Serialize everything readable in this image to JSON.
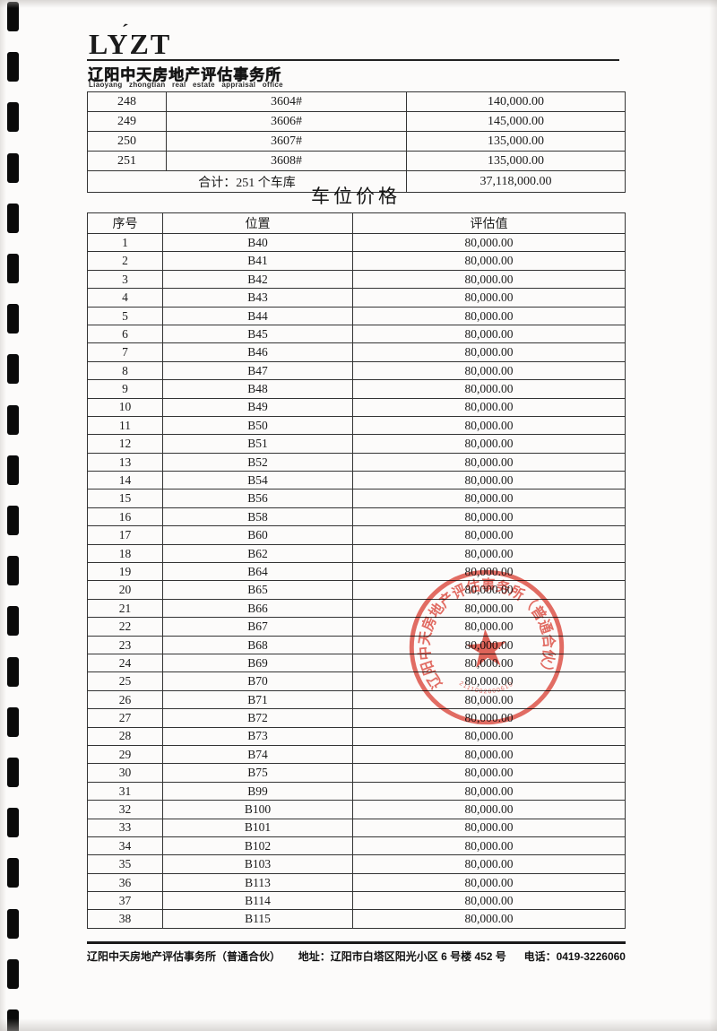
{
  "header": {
    "logo_text": "LYZT",
    "logo_accent": "ˊ",
    "company_cn": "辽阳中天房地产评估事务所",
    "company_en": "Liaoyang zhongtian real estate appraisal office"
  },
  "garage_table": {
    "rows": [
      [
        "248",
        "3604#",
        "140,000.00"
      ],
      [
        "249",
        "3606#",
        "145,000.00"
      ],
      [
        "250",
        "3607#",
        "135,000.00"
      ],
      [
        "251",
        "3608#",
        "135,000.00"
      ]
    ],
    "total_label": "合计：251 个车库",
    "total_value": "37,118,000.00"
  },
  "section_title": "车位价格",
  "parking_table": {
    "headers": [
      "序号",
      "位置",
      "评估值"
    ],
    "rows": [
      [
        "1",
        "B40",
        "80,000.00"
      ],
      [
        "2",
        "B41",
        "80,000.00"
      ],
      [
        "3",
        "B42",
        "80,000.00"
      ],
      [
        "4",
        "B43",
        "80,000.00"
      ],
      [
        "5",
        "B44",
        "80,000.00"
      ],
      [
        "6",
        "B45",
        "80,000.00"
      ],
      [
        "7",
        "B46",
        "80,000.00"
      ],
      [
        "8",
        "B47",
        "80,000.00"
      ],
      [
        "9",
        "B48",
        "80,000.00"
      ],
      [
        "10",
        "B49",
        "80,000.00"
      ],
      [
        "11",
        "B50",
        "80,000.00"
      ],
      [
        "12",
        "B51",
        "80,000.00"
      ],
      [
        "13",
        "B52",
        "80,000.00"
      ],
      [
        "14",
        "B54",
        "80,000.00"
      ],
      [
        "15",
        "B56",
        "80,000.00"
      ],
      [
        "16",
        "B58",
        "80,000.00"
      ],
      [
        "17",
        "B60",
        "80,000.00"
      ],
      [
        "18",
        "B62",
        "80,000.00"
      ],
      [
        "19",
        "B64",
        "80,000.00"
      ],
      [
        "20",
        "B65",
        "80,000.00"
      ],
      [
        "21",
        "B66",
        "80,000.00"
      ],
      [
        "22",
        "B67",
        "80,000.00"
      ],
      [
        "23",
        "B68",
        "80,000.00"
      ],
      [
        "24",
        "B69",
        "80,000.00"
      ],
      [
        "25",
        "B70",
        "80,000.00"
      ],
      [
        "26",
        "B71",
        "80,000.00"
      ],
      [
        "27",
        "B72",
        "80,000.00"
      ],
      [
        "28",
        "B73",
        "80,000.00"
      ],
      [
        "29",
        "B74",
        "80,000.00"
      ],
      [
        "30",
        "B75",
        "80,000.00"
      ],
      [
        "31",
        "B99",
        "80,000.00"
      ],
      [
        "32",
        "B100",
        "80,000.00"
      ],
      [
        "33",
        "B101",
        "80,000.00"
      ],
      [
        "34",
        "B102",
        "80,000.00"
      ],
      [
        "35",
        "B103",
        "80,000.00"
      ],
      [
        "36",
        "B113",
        "80,000.00"
      ],
      [
        "37",
        "B114",
        "80,000.00"
      ],
      [
        "38",
        "B115",
        "80,000.00"
      ]
    ]
  },
  "stamp": {
    "arc_text": "辽阳中天房地产评估事务所（普通合伙）",
    "serial": "2111002000610",
    "color": "#e0544a",
    "star_color": "#dc4a3e"
  },
  "footer": {
    "company": "辽阳中天房地产评估事务所（普通合伙）",
    "address": "地址：辽阳市白塔区阳光小区 6 号楼 452 号",
    "phone": "电话：0419-3226060"
  },
  "binding": {
    "hole_count": 21
  }
}
